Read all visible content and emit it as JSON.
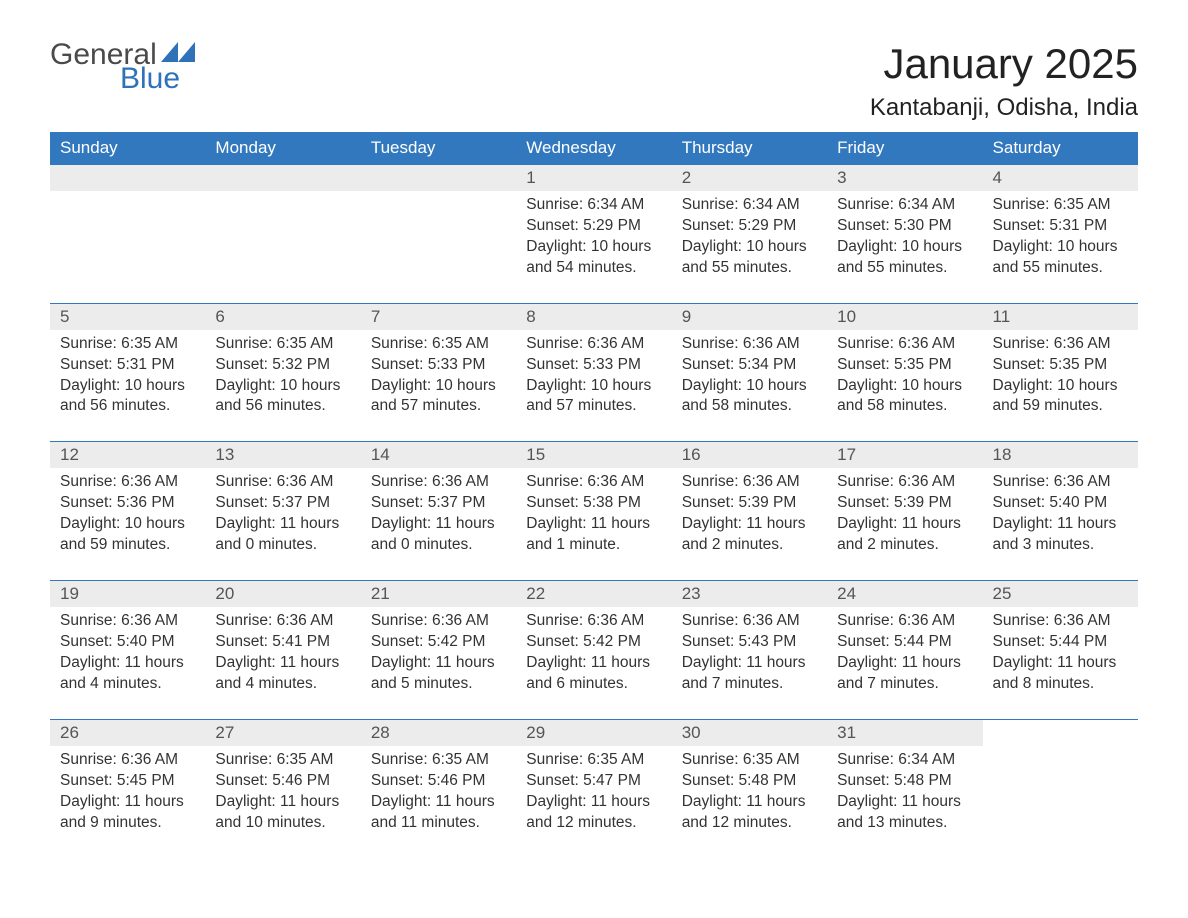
{
  "logo": {
    "word1": "General",
    "word2": "Blue",
    "color_gray": "#4a4a4a",
    "color_blue": "#2f72b8"
  },
  "header": {
    "title": "January 2025",
    "location": "Kantabanji, Odisha, India"
  },
  "calendar": {
    "header_bg": "#3278be",
    "header_fg": "#ffffff",
    "daynum_bg": "#ececec",
    "row_border": "#3278be",
    "text_color": "#333333",
    "days_of_week": [
      "Sunday",
      "Monday",
      "Tuesday",
      "Wednesday",
      "Thursday",
      "Friday",
      "Saturday"
    ],
    "weeks": [
      [
        null,
        null,
        null,
        {
          "n": "1",
          "sunrise": "6:34 AM",
          "sunset": "5:29 PM",
          "daylight": "10 hours and 54 minutes."
        },
        {
          "n": "2",
          "sunrise": "6:34 AM",
          "sunset": "5:29 PM",
          "daylight": "10 hours and 55 minutes."
        },
        {
          "n": "3",
          "sunrise": "6:34 AM",
          "sunset": "5:30 PM",
          "daylight": "10 hours and 55 minutes."
        },
        {
          "n": "4",
          "sunrise": "6:35 AM",
          "sunset": "5:31 PM",
          "daylight": "10 hours and 55 minutes."
        }
      ],
      [
        {
          "n": "5",
          "sunrise": "6:35 AM",
          "sunset": "5:31 PM",
          "daylight": "10 hours and 56 minutes."
        },
        {
          "n": "6",
          "sunrise": "6:35 AM",
          "sunset": "5:32 PM",
          "daylight": "10 hours and 56 minutes."
        },
        {
          "n": "7",
          "sunrise": "6:35 AM",
          "sunset": "5:33 PM",
          "daylight": "10 hours and 57 minutes."
        },
        {
          "n": "8",
          "sunrise": "6:36 AM",
          "sunset": "5:33 PM",
          "daylight": "10 hours and 57 minutes."
        },
        {
          "n": "9",
          "sunrise": "6:36 AM",
          "sunset": "5:34 PM",
          "daylight": "10 hours and 58 minutes."
        },
        {
          "n": "10",
          "sunrise": "6:36 AM",
          "sunset": "5:35 PM",
          "daylight": "10 hours and 58 minutes."
        },
        {
          "n": "11",
          "sunrise": "6:36 AM",
          "sunset": "5:35 PM",
          "daylight": "10 hours and 59 minutes."
        }
      ],
      [
        {
          "n": "12",
          "sunrise": "6:36 AM",
          "sunset": "5:36 PM",
          "daylight": "10 hours and 59 minutes."
        },
        {
          "n": "13",
          "sunrise": "6:36 AM",
          "sunset": "5:37 PM",
          "daylight": "11 hours and 0 minutes."
        },
        {
          "n": "14",
          "sunrise": "6:36 AM",
          "sunset": "5:37 PM",
          "daylight": "11 hours and 0 minutes."
        },
        {
          "n": "15",
          "sunrise": "6:36 AM",
          "sunset": "5:38 PM",
          "daylight": "11 hours and 1 minute."
        },
        {
          "n": "16",
          "sunrise": "6:36 AM",
          "sunset": "5:39 PM",
          "daylight": "11 hours and 2 minutes."
        },
        {
          "n": "17",
          "sunrise": "6:36 AM",
          "sunset": "5:39 PM",
          "daylight": "11 hours and 2 minutes."
        },
        {
          "n": "18",
          "sunrise": "6:36 AM",
          "sunset": "5:40 PM",
          "daylight": "11 hours and 3 minutes."
        }
      ],
      [
        {
          "n": "19",
          "sunrise": "6:36 AM",
          "sunset": "5:40 PM",
          "daylight": "11 hours and 4 minutes."
        },
        {
          "n": "20",
          "sunrise": "6:36 AM",
          "sunset": "5:41 PM",
          "daylight": "11 hours and 4 minutes."
        },
        {
          "n": "21",
          "sunrise": "6:36 AM",
          "sunset": "5:42 PM",
          "daylight": "11 hours and 5 minutes."
        },
        {
          "n": "22",
          "sunrise": "6:36 AM",
          "sunset": "5:42 PM",
          "daylight": "11 hours and 6 minutes."
        },
        {
          "n": "23",
          "sunrise": "6:36 AM",
          "sunset": "5:43 PM",
          "daylight": "11 hours and 7 minutes."
        },
        {
          "n": "24",
          "sunrise": "6:36 AM",
          "sunset": "5:44 PM",
          "daylight": "11 hours and 7 minutes."
        },
        {
          "n": "25",
          "sunrise": "6:36 AM",
          "sunset": "5:44 PM",
          "daylight": "11 hours and 8 minutes."
        }
      ],
      [
        {
          "n": "26",
          "sunrise": "6:36 AM",
          "sunset": "5:45 PM",
          "daylight": "11 hours and 9 minutes."
        },
        {
          "n": "27",
          "sunrise": "6:35 AM",
          "sunset": "5:46 PM",
          "daylight": "11 hours and 10 minutes."
        },
        {
          "n": "28",
          "sunrise": "6:35 AM",
          "sunset": "5:46 PM",
          "daylight": "11 hours and 11 minutes."
        },
        {
          "n": "29",
          "sunrise": "6:35 AM",
          "sunset": "5:47 PM",
          "daylight": "11 hours and 12 minutes."
        },
        {
          "n": "30",
          "sunrise": "6:35 AM",
          "sunset": "5:48 PM",
          "daylight": "11 hours and 12 minutes."
        },
        {
          "n": "31",
          "sunrise": "6:34 AM",
          "sunset": "5:48 PM",
          "daylight": "11 hours and 13 minutes."
        },
        null
      ]
    ],
    "labels": {
      "sunrise": "Sunrise: ",
      "sunset": "Sunset: ",
      "daylight": "Daylight: "
    }
  }
}
